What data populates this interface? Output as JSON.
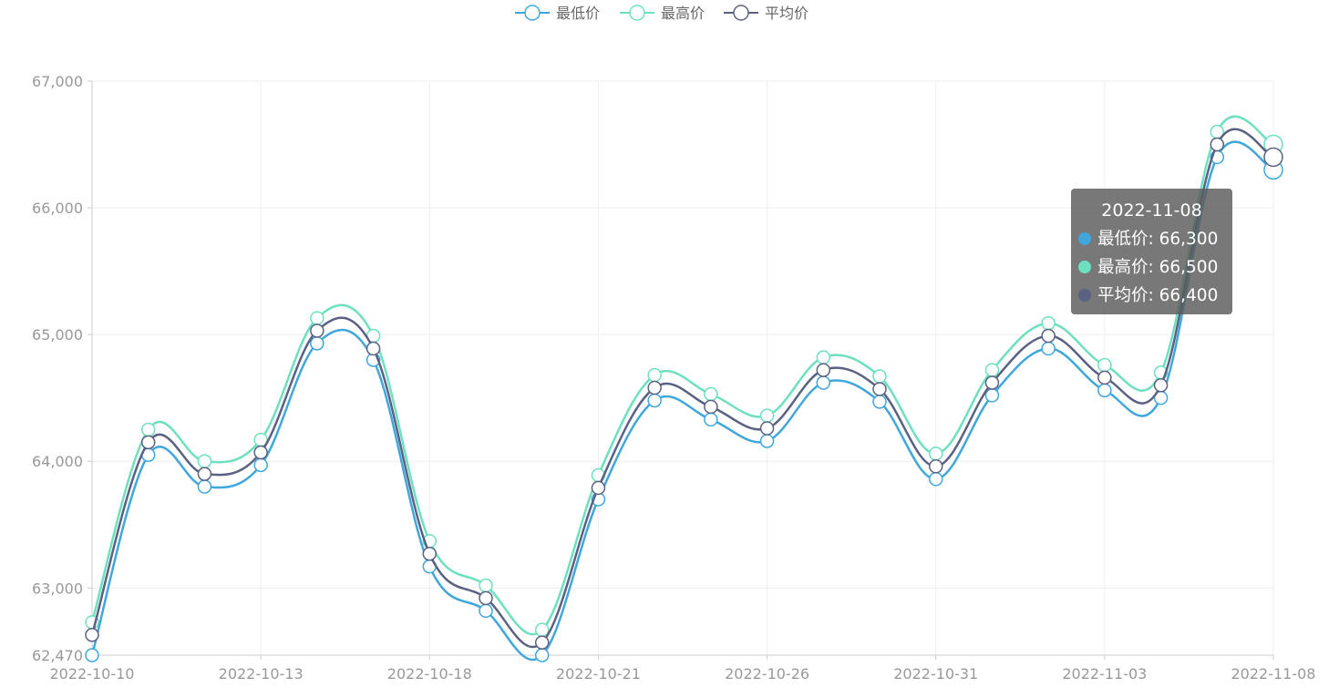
{
  "chart_data": {
    "type": "line",
    "title": "",
    "xlabel": "",
    "ylabel": "",
    "x": [
      "2022-10-10",
      "2022-10-11",
      "2022-10-12",
      "2022-10-13",
      "2022-10-14",
      "2022-10-17",
      "2022-10-18",
      "2022-10-19",
      "2022-10-20",
      "2022-10-21",
      "2022-10-24",
      "2022-10-25",
      "2022-10-26",
      "2022-10-27",
      "2022-10-28",
      "2022-10-31",
      "2022-11-01",
      "2022-11-02",
      "2022-11-03",
      "2022-11-04",
      "2022-11-07",
      "2022-11-08"
    ],
    "x_tick_labels": [
      "2022-10-10",
      "2022-10-13",
      "2022-10-18",
      "2022-10-21",
      "2022-10-26",
      "2022-10-31",
      "2022-11-03",
      "2022-11-08"
    ],
    "y_ticks": [
      62470,
      63000,
      64000,
      65000,
      66000,
      67000
    ],
    "y_tick_labels": [
      "62,470",
      "63,000",
      "64,000",
      "65,000",
      "66,000",
      "67,000"
    ],
    "ylim": [
      62470,
      67000
    ],
    "grid": true,
    "legend_position": "top-center",
    "series": [
      {
        "name": "最低价",
        "color": "#3fa7dc",
        "values": [
          62470,
          64050,
          63800,
          63970,
          64930,
          64800,
          63170,
          62820,
          62470,
          63700,
          64480,
          64330,
          64160,
          64620,
          64470,
          63860,
          64520,
          64890,
          64560,
          64500,
          66400,
          66300
        ]
      },
      {
        "name": "最高价",
        "color": "#6de0bf",
        "values": [
          62730,
          64250,
          64000,
          64170,
          65130,
          64990,
          63370,
          63020,
          62670,
          63890,
          64680,
          64530,
          64360,
          64820,
          64670,
          64060,
          64720,
          65090,
          64760,
          64700,
          66600,
          66500
        ]
      },
      {
        "name": "平均价",
        "color": "#5a6182",
        "values": [
          62630,
          64150,
          63900,
          64070,
          65030,
          64890,
          63270,
          62920,
          62570,
          63790,
          64580,
          64430,
          64260,
          64720,
          64570,
          63960,
          64620,
          64990,
          64660,
          64600,
          66500,
          66400
        ]
      }
    ],
    "tooltip": {
      "title": "2022-11-08",
      "rows": [
        "最低价: 66,300",
        "最高价: 66,500",
        "平均价: 66,400"
      ]
    }
  }
}
